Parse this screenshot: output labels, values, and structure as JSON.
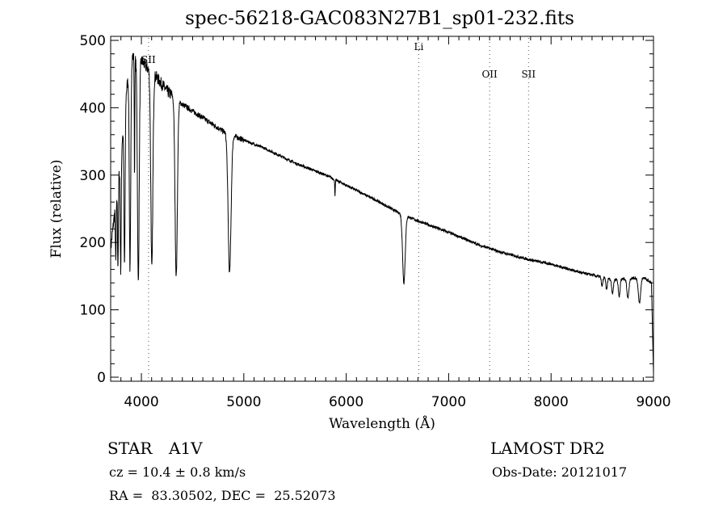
{
  "chart_data": {
    "type": "line",
    "title": "spec-56218-GAC083N27B1_sp01-232.fits",
    "xlabel": "Wavelength (Å)",
    "ylabel": "Flux (relative)",
    "xlim": [
      3700,
      9000
    ],
    "ylim": [
      -6,
      506
    ],
    "xticks": [
      4000,
      5000,
      6000,
      7000,
      8000,
      9000
    ],
    "yticks": [
      0,
      100,
      200,
      300,
      400,
      500
    ],
    "grid": false,
    "continuum": [
      [
        3700,
        190
      ],
      [
        3800,
        330
      ],
      [
        3850,
        420
      ],
      [
        3900,
        480
      ],
      [
        3950,
        470
      ],
      [
        4000,
        470
      ],
      [
        4050,
        460
      ],
      [
        4150,
        445
      ],
      [
        4250,
        425
      ],
      [
        4400,
        405
      ],
      [
        4600,
        385
      ],
      [
        4800,
        365
      ],
      [
        4950,
        355
      ],
      [
        5200,
        340
      ],
      [
        5500,
        318
      ],
      [
        5800,
        300
      ],
      [
        6000,
        285
      ],
      [
        6300,
        262
      ],
      [
        6500,
        245
      ],
      [
        6700,
        232
      ],
      [
        7000,
        215
      ],
      [
        7300,
        196
      ],
      [
        7500,
        186
      ],
      [
        7800,
        174
      ],
      [
        8000,
        168
      ],
      [
        8300,
        155
      ],
      [
        8600,
        145
      ],
      [
        8900,
        148
      ],
      [
        8980,
        140
      ],
      [
        9000,
        5
      ]
    ],
    "absorption_lines": [
      [
        3750,
        170,
        6
      ],
      [
        3771,
        165,
        6
      ],
      [
        3798,
        160,
        7
      ],
      [
        3835,
        165,
        8
      ],
      [
        3889,
        160,
        10
      ],
      [
        3933,
        300,
        4
      ],
      [
        3970,
        140,
        12
      ],
      [
        4102,
        160,
        14
      ],
      [
        4340,
        150,
        16
      ],
      [
        4861,
        155,
        20
      ],
      [
        5890,
        270,
        4
      ],
      [
        6563,
        140,
        18
      ],
      [
        8498,
        135,
        10
      ],
      [
        8542,
        130,
        10
      ],
      [
        8600,
        125,
        12
      ],
      [
        8665,
        120,
        12
      ],
      [
        8750,
        118,
        14
      ],
      [
        8863,
        110,
        16
      ]
    ],
    "line_markers": [
      {
        "label": "SII",
        "wavelength": 4070
      },
      {
        "label": "Li",
        "wavelength": 6708
      },
      {
        "label": "OII",
        "wavelength": 7400
      },
      {
        "label": "SII",
        "wavelength": 7780
      }
    ]
  },
  "info": {
    "class": "STAR",
    "subclass": "A1V",
    "survey": "LAMOST DR2",
    "cz": "cz = 10.4 ± 0.8 km/s",
    "obsdate": "Obs-Date: 20121017",
    "coords": "RA =  83.30502, DEC =  25.52073"
  }
}
